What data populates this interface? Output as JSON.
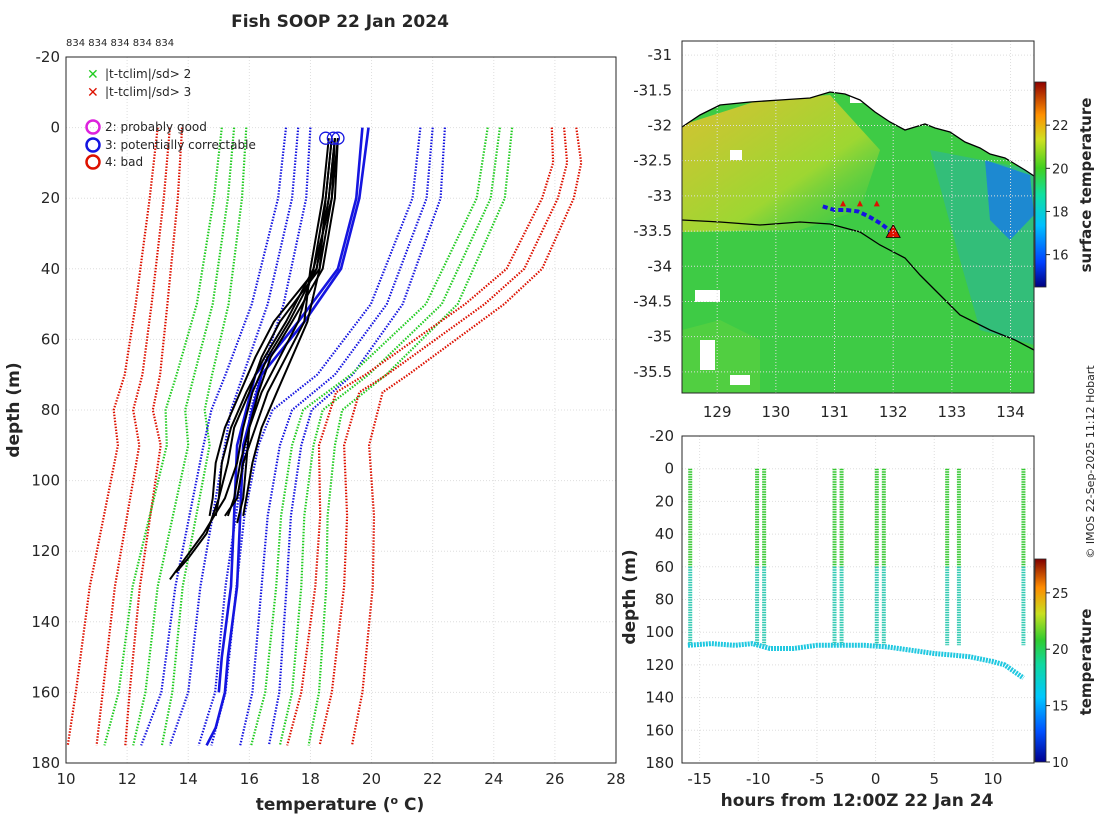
{
  "title": "Fish SOOP 22 Jan 2024",
  "counts_label": "834 834 834 834 834",
  "credit": "© IMOS 22-Sep-2025 11:12 Hobart",
  "legend": {
    "cross_green": "|t-tclim|/sd> 2",
    "cross_red": "|t-tclim|/sd> 3",
    "flag2": "2: probably good",
    "flag3": "3: potentially correctable",
    "flag4": "4: bad"
  },
  "colors": {
    "green": "#22cc22",
    "red": "#dd1100",
    "blue": "#1515e0",
    "magenta": "#dd22dd",
    "black": "#000000"
  },
  "chart_data": [
    {
      "type": "line",
      "name": "profile",
      "title": "Fish SOOP 22 Jan 2024",
      "xlabel": "temperature (",
      "xlabel_sup": "o",
      "xlabel_tail": " C)",
      "ylabel": "depth (m)",
      "xlim": [
        10,
        28
      ],
      "ylim": [
        -20,
        180
      ],
      "xticks": [
        10,
        12,
        14,
        16,
        18,
        20,
        22,
        24,
        26,
        28
      ],
      "yticks": [
        -20,
        0,
        20,
        40,
        60,
        80,
        100,
        120,
        140,
        160,
        180
      ],
      "climatology": [
        {
          "name": "mean-3sd",
          "color": "red",
          "depth": [
            0,
            20,
            50,
            70,
            80,
            90,
            110,
            130,
            160,
            175
          ],
          "temp": [
            13.4,
            13.2,
            12.8,
            12.5,
            12.2,
            12.4,
            12.0,
            11.6,
            11.2,
            11.0
          ]
        },
        {
          "name": "mean-2sd",
          "color": "green",
          "depth": [
            0,
            20,
            50,
            70,
            80,
            90,
            110,
            130,
            160,
            175
          ],
          "temp": [
            15.5,
            15.3,
            14.8,
            14.2,
            13.9,
            14.0,
            13.5,
            13.0,
            12.6,
            12.2
          ]
        },
        {
          "name": "mean-1sd",
          "color": "blue",
          "depth": [
            0,
            20,
            50,
            70,
            80,
            90,
            110,
            130,
            160,
            175
          ],
          "temp": [
            17.6,
            17.4,
            16.6,
            15.8,
            15.4,
            15.2,
            14.8,
            14.4,
            14.0,
            13.4
          ]
        },
        {
          "name": "mean+1sd",
          "color": "blue",
          "depth": [
            0,
            20,
            50,
            70,
            80,
            90,
            110,
            130,
            160,
            175
          ],
          "temp": [
            22.0,
            21.8,
            20.5,
            18.8,
            17.4,
            17.0,
            16.6,
            16.4,
            16.1,
            15.7
          ]
        },
        {
          "name": "mean+2sd",
          "color": "green",
          "depth": [
            0,
            20,
            50,
            70,
            80,
            90,
            110,
            130,
            160,
            175
          ],
          "temp": [
            24.2,
            23.9,
            22.3,
            19.9,
            18.4,
            18.1,
            17.8,
            17.7,
            17.4,
            17.0
          ]
        },
        {
          "name": "mean+3sd",
          "color": "red",
          "depth": [
            0,
            10,
            20,
            40,
            50,
            70,
            75,
            90,
            110,
            130,
            160,
            175
          ],
          "temp": [
            26.3,
            26.4,
            26.1,
            25.0,
            23.7,
            20.5,
            19.6,
            19.1,
            19.2,
            19.1,
            18.7,
            18.3
          ]
        }
      ],
      "mean_blue": [
        {
          "depth": [
            0,
            20,
            40,
            55,
            70,
            90,
            110,
            130,
            150,
            160,
            170,
            175
          ],
          "temp": [
            19.9,
            19.6,
            19.0,
            17.8,
            16.4,
            15.8,
            15.7,
            15.6,
            15.3,
            15.2,
            14.9,
            14.6
          ]
        },
        {
          "depth": [
            0,
            20,
            40,
            55,
            70,
            90,
            110,
            130,
            150,
            160
          ],
          "temp": [
            19.7,
            19.5,
            18.9,
            17.6,
            16.2,
            15.6,
            15.5,
            15.4,
            15.1,
            15.0
          ]
        }
      ],
      "profiles": [
        {
          "depth": [
            3,
            20,
            40,
            55,
            65,
            75,
            85,
            95,
            105,
            115,
            122,
            128
          ],
          "temp": [
            18.8,
            18.6,
            18.2,
            17.3,
            16.6,
            16.1,
            15.8,
            15.6,
            15.2,
            14.5,
            13.9,
            13.4
          ]
        },
        {
          "depth": [
            3,
            20,
            40,
            55,
            65,
            75,
            85,
            95,
            105,
            115,
            122,
            126
          ],
          "temp": [
            18.9,
            18.7,
            18.3,
            17.0,
            16.4,
            16.0,
            15.5,
            15.3,
            15.0,
            14.6,
            14.0,
            13.6
          ]
        },
        {
          "depth": [
            3,
            20,
            40,
            55,
            65,
            75,
            85,
            95,
            105,
            110
          ],
          "temp": [
            18.7,
            18.5,
            18.1,
            17.6,
            17.0,
            16.4,
            16.0,
            15.7,
            15.5,
            15.3
          ]
        },
        {
          "depth": [
            3,
            20,
            40,
            55,
            65,
            75,
            85,
            95,
            105,
            110
          ],
          "temp": [
            18.6,
            18.4,
            18.0,
            17.8,
            17.2,
            16.6,
            16.2,
            15.8,
            15.6,
            15.2
          ]
        },
        {
          "depth": [
            3,
            20,
            40,
            55,
            65,
            75,
            85,
            95,
            105,
            110
          ],
          "temp": [
            18.8,
            18.6,
            18.2,
            16.8,
            16.2,
            15.7,
            15.2,
            14.9,
            14.8,
            14.7
          ]
        },
        {
          "depth": [
            3,
            20,
            40,
            55,
            65,
            75,
            85,
            95,
            105,
            112
          ],
          "temp": [
            18.9,
            18.8,
            18.4,
            17.4,
            16.7,
            16.3,
            16.0,
            15.9,
            15.8,
            15.6
          ]
        },
        {
          "depth": [
            3,
            20,
            40,
            55,
            65,
            75,
            85,
            95,
            105,
            110
          ],
          "temp": [
            18.7,
            18.5,
            18.3,
            17.9,
            17.4,
            16.9,
            16.4,
            16.1,
            15.9,
            15.8
          ]
        },
        {
          "depth": [
            3,
            20,
            40,
            55,
            65,
            75,
            85,
            95,
            105,
            110
          ],
          "temp": [
            18.8,
            18.7,
            18.1,
            17.2,
            16.5,
            15.9,
            15.4,
            15.1,
            15.0,
            14.9
          ]
        }
      ],
      "flag3_markers": {
        "depth": [
          3,
          3,
          3
        ],
        "temp": [
          18.5,
          18.75,
          18.9
        ]
      }
    },
    {
      "type": "heatmap",
      "name": "surface temperature map",
      "xlim": [
        128.4,
        134.4
      ],
      "ylim": [
        -35.8,
        -30.8
      ],
      "xticks": [
        129,
        130,
        131,
        132,
        133,
        134
      ],
      "yticks": [
        -31,
        -31.5,
        -32,
        -32.5,
        -33,
        -33.5,
        -34,
        -34.5,
        -35,
        -35.5
      ],
      "colorbar_label": "surface temperature",
      "colorbar_range": [
        14.5,
        24
      ],
      "colorbar_ticks": [
        16,
        18,
        20,
        22
      ],
      "track": {
        "lon": [
          130.8,
          131.0,
          131.2,
          131.4,
          131.6,
          131.8,
          131.95
        ],
        "lat": [
          -33.15,
          -33.2,
          -33.2,
          -33.22,
          -33.3,
          -33.4,
          -33.5
        ]
      },
      "end_marker": {
        "lon": 132.0,
        "lat": -33.52
      }
    },
    {
      "type": "scatter",
      "name": "depth vs time",
      "xlabel": "hours from 12:00Z 22 Jan 24",
      "ylabel": "depth (m)",
      "xlim": [
        -16.5,
        13.5
      ],
      "ylim": [
        -20,
        180
      ],
      "xticks": [
        -15,
        -10,
        -5,
        0,
        5,
        10
      ],
      "yticks": [
        -20,
        0,
        20,
        40,
        60,
        80,
        100,
        120,
        140,
        160,
        180
      ],
      "colorbar_label": "temperature",
      "colorbar_range": [
        10,
        28
      ],
      "colorbar_ticks": [
        10,
        15,
        20,
        25
      ],
      "casts": [
        -15.8,
        -10.1,
        -9.5,
        -3.5,
        -2.9,
        0.1,
        0.7,
        6.1,
        7.1,
        12.6
      ],
      "bottom_hours": [
        -16,
        -14,
        -12,
        -10.5,
        -9,
        -7,
        -5,
        -3.2,
        -1,
        1,
        3,
        5,
        6.6,
        8,
        10,
        11,
        12,
        12.6
      ],
      "bottom_depths": [
        108,
        107,
        108,
        107,
        110,
        110,
        108,
        108,
        108,
        109,
        111,
        113,
        114,
        115,
        118,
        120,
        125,
        128
      ]
    }
  ]
}
